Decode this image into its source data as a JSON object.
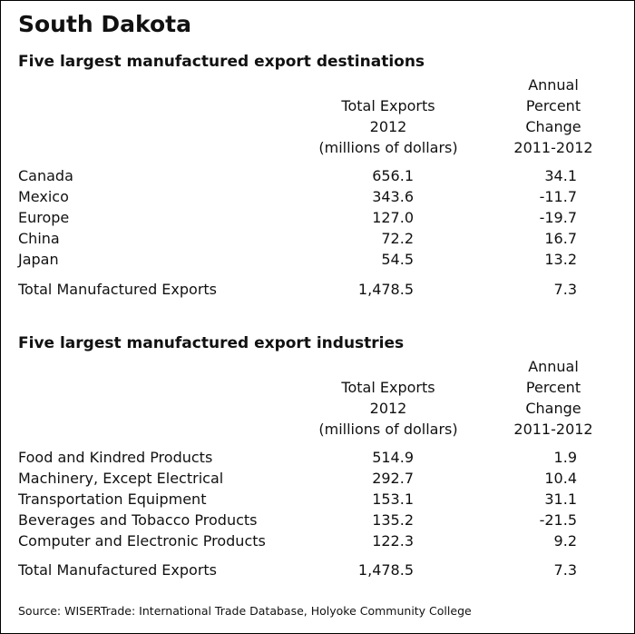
{
  "title": "South Dakota",
  "destinations": {
    "heading": "Five largest manufactured export destinations",
    "col1": [
      "Total Exports",
      "2012",
      "(millions of dollars)"
    ],
    "col2": [
      "Annual",
      "Percent",
      "Change",
      "2011-2012"
    ],
    "rows": [
      {
        "label": "Canada",
        "exports": "656.1",
        "change": "34.1"
      },
      {
        "label": "Mexico",
        "exports": "343.6",
        "change": "-11.7"
      },
      {
        "label": "Europe",
        "exports": "127.0",
        "change": "-19.7"
      },
      {
        "label": "China",
        "exports": "72.2",
        "change": "16.7"
      },
      {
        "label": "Japan",
        "exports": "54.5",
        "change": "13.2"
      }
    ],
    "total": {
      "label": "Total Manufactured Exports",
      "exports": "1,478.5",
      "change": "7.3"
    }
  },
  "industries": {
    "heading": "Five largest manufactured export industries",
    "col1": [
      "Total Exports",
      "2012",
      "(millions of dollars)"
    ],
    "col2": [
      "Annual",
      "Percent",
      "Change",
      "2011-2012"
    ],
    "rows": [
      {
        "label": "Food and Kindred Products",
        "exports": "514.9",
        "change": "1.9"
      },
      {
        "label": "Machinery, Except Electrical",
        "exports": "292.7",
        "change": "10.4"
      },
      {
        "label": "Transportation Equipment",
        "exports": "153.1",
        "change": "31.1"
      },
      {
        "label": "Beverages and Tobacco Products",
        "exports": "135.2",
        "change": "-21.5"
      },
      {
        "label": "Computer and Electronic Products",
        "exports": "122.3",
        "change": "9.2"
      }
    ],
    "total": {
      "label": "Total Manufactured Exports",
      "exports": "1,478.5",
      "change": "7.3"
    }
  },
  "source": "Source: WISERTrade: International Trade Database, Holyoke Community College"
}
